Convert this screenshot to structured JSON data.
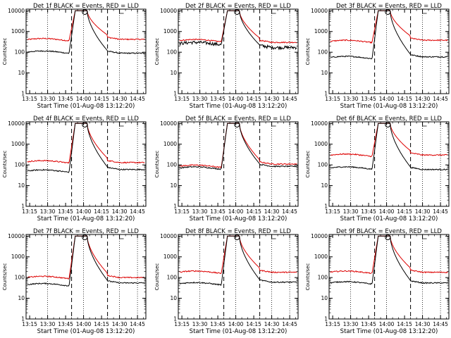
{
  "chart_data": {
    "type": "line",
    "panel_titles": [
      "Det 1f BLACK = Events, RED = LLD",
      "Det 2f BLACK = Events, RED = LLD",
      "Det 3f BLACK = Events, RED = LLD",
      "Det 4f BLACK = Events, RED = LLD",
      "Det 5f BLACK = Events, RED = LLD",
      "Det 6f BLACK = Events, RED = LLD",
      "Det 7f BLACK = Events, RED = LLD",
      "Det 8f BLACK = Events, RED = LLD",
      "Det 9f BLACK = Events, RED = LLD"
    ],
    "xlabel": "Start Time (01-Aug-08 13:12:20)",
    "ylabel": "Counts/sec",
    "x_tick_labels": [
      "13:15",
      "13:30",
      "13:45",
      "14:00",
      "14:15",
      "14:30",
      "14:45"
    ],
    "y_tick_labels": [
      "1",
      "10",
      "100",
      "1000",
      "10000"
    ],
    "yscale": "log",
    "ylim": [
      1,
      12000
    ],
    "xlim_minutes": [
      "13:12",
      "14:52"
    ],
    "series_colors": {
      "events": "#000000",
      "lld": "#dd0000"
    },
    "dotted_lines_at": [
      "13:30",
      "14:00",
      "14:30",
      "14:45"
    ],
    "dashed_lines_at": [
      "13:50",
      "14:20"
    ],
    "circle_marker_at": "14:01",
    "saturation_level": 10000,
    "panels": [
      {
        "events_before": 100,
        "events_after": 90,
        "lld_before": 400,
        "lld_after": 420
      },
      {
        "events_before": 260,
        "events_after": 170,
        "lld_before": 360,
        "lld_after": 300
      },
      {
        "events_before": 55,
        "events_after": 60,
        "lld_before": 330,
        "lld_after": 380
      },
      {
        "events_before": 50,
        "events_after": 60,
        "lld_before": 140,
        "lld_after": 130
      },
      {
        "events_before": 70,
        "events_after": 85,
        "lld_before": 85,
        "lld_after": 110
      },
      {
        "events_before": 70,
        "events_after": 60,
        "lld_before": 290,
        "lld_after": 300
      },
      {
        "events_before": 45,
        "events_after": 55,
        "lld_before": 100,
        "lld_after": 100
      },
      {
        "events_before": 50,
        "events_after": 60,
        "lld_before": 180,
        "lld_after": 180
      },
      {
        "events_before": 55,
        "events_after": 55,
        "lld_before": 180,
        "lld_after": 180
      }
    ]
  }
}
